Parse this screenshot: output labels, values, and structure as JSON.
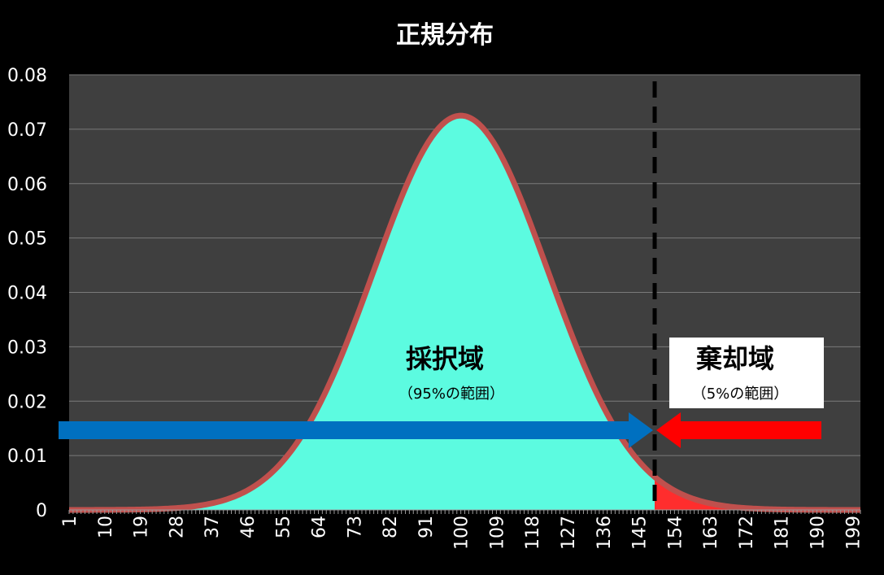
{
  "chart_data": {
    "type": "area",
    "title": "正規分布",
    "xlabel": "",
    "ylabel": "",
    "x_tick_labels": [
      "1",
      "10",
      "19",
      "28",
      "37",
      "46",
      "55",
      "64",
      "73",
      "82",
      "91",
      "100",
      "109",
      "118",
      "127",
      "136",
      "145",
      "154",
      "163",
      "172",
      "181",
      "190",
      "199"
    ],
    "y_tick_labels": [
      "0",
      "0.01",
      "0.02",
      "0.03",
      "0.04",
      "0.05",
      "0.06",
      "0.07",
      "0.08"
    ],
    "xlim": [
      1,
      201
    ],
    "ylim": [
      0,
      0.08
    ],
    "grid": true,
    "curve": {
      "mean": 100,
      "sd": 22,
      "peak": 0.0725
    },
    "critical_x": 149,
    "colors": {
      "background": "#000000",
      "plot_area": "#3f3f3f",
      "curve": "#c0504d",
      "acceptance_fill": "#5cfbe0",
      "rejection_fill": "#ff2d2d",
      "left_arrow": "#0070c0",
      "right_arrow": "#ff0000"
    },
    "acceptance_region": {
      "label": "採択域",
      "range_label": "（95%の範囲）"
    },
    "rejection_region": {
      "label": "棄却域",
      "range_label": "（5%の範囲）"
    }
  }
}
